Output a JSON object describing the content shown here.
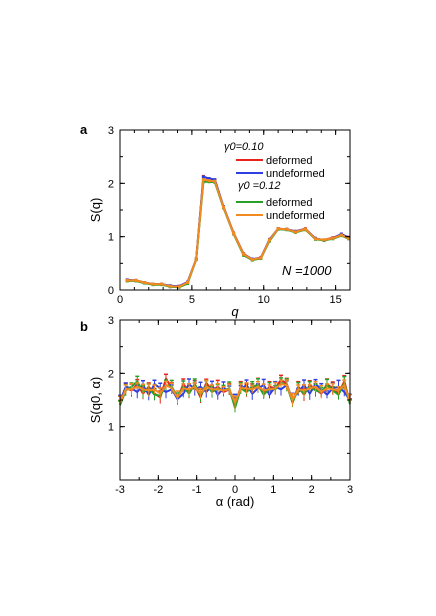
{
  "chart_data": [
    {
      "panel_label": "a",
      "type": "line",
      "xlabel": "q",
      "ylabel": "S(q)",
      "xlim": [
        0,
        16
      ],
      "ylim": [
        0,
        3
      ],
      "xticks": [
        0,
        5,
        10,
        15
      ],
      "yticks": [
        0,
        1,
        2,
        3
      ],
      "annotation": "N =1000",
      "legend": [
        {
          "heading": "γ0=0.10",
          "entries": [
            "deformed",
            "undeformed"
          ]
        },
        {
          "heading": "γ0 =0.12",
          "entries": [
            "deformed",
            "undeformed"
          ]
        }
      ],
      "x": [
        0.5,
        1.1,
        1.7,
        2.3,
        2.9,
        3.5,
        4.1,
        4.7,
        5.3,
        5.8,
        6.2,
        6.6,
        7.2,
        7.9,
        8.6,
        9.2,
        9.8,
        10.4,
        11.0,
        11.6,
        12.2,
        12.9,
        13.6,
        14.2,
        14.8,
        15.4,
        15.9
      ],
      "series": [
        {
          "name": "deformed",
          "color": "#e8231c",
          "values": [
            0.18,
            0.18,
            0.14,
            0.11,
            0.11,
            0.07,
            0.07,
            0.15,
            0.58,
            2.13,
            2.08,
            2.06,
            1.56,
            1.07,
            0.68,
            0.57,
            0.61,
            0.94,
            1.15,
            1.14,
            1.1,
            1.15,
            0.96,
            0.94,
            0.98,
            1.04,
            0.99
          ]
        },
        {
          "name": "undeformed",
          "color": "#2f3ee0",
          "values": [
            0.19,
            0.18,
            0.14,
            0.11,
            0.11,
            0.08,
            0.07,
            0.15,
            0.58,
            2.12,
            2.09,
            2.07,
            1.56,
            1.06,
            0.67,
            0.58,
            0.6,
            0.95,
            1.15,
            1.14,
            1.1,
            1.14,
            0.97,
            0.93,
            0.97,
            1.05,
            0.98
          ]
        },
        {
          "name": "deformed",
          "color": "#28a028",
          "values": [
            0.17,
            0.17,
            0.13,
            0.1,
            0.1,
            0.06,
            0.05,
            0.12,
            0.57,
            2.03,
            2.03,
            2.02,
            1.54,
            1.05,
            0.65,
            0.56,
            0.59,
            0.92,
            1.14,
            1.13,
            1.08,
            1.13,
            0.95,
            0.93,
            0.96,
            1.02,
            0.96
          ]
        },
        {
          "name": "undeformed",
          "color": "#f28a22",
          "values": [
            0.18,
            0.18,
            0.14,
            0.11,
            0.11,
            0.07,
            0.06,
            0.14,
            0.58,
            2.07,
            2.05,
            2.04,
            1.55,
            1.06,
            0.67,
            0.57,
            0.6,
            0.94,
            1.15,
            1.14,
            1.09,
            1.14,
            0.96,
            0.94,
            0.97,
            1.03,
            0.97
          ]
        }
      ]
    },
    {
      "panel_label": "b",
      "type": "line",
      "xlabel": "α (rad)",
      "ylabel": "S(q0, α)",
      "xlim": [
        -3,
        3
      ],
      "ylim": [
        0,
        3
      ],
      "xticks": [
        -3,
        -2,
        -1,
        0,
        1,
        2,
        3
      ],
      "yticks": [
        1,
        2,
        3
      ],
      "error_bars": true,
      "x": [
        -3.0,
        -2.85,
        -2.7,
        -2.55,
        -2.4,
        -2.25,
        -2.1,
        -1.95,
        -1.8,
        -1.65,
        -1.5,
        -1.35,
        -1.2,
        -1.05,
        -0.9,
        -0.75,
        -0.6,
        -0.45,
        -0.3,
        -0.15,
        0.0,
        0.15,
        0.3,
        0.45,
        0.6,
        0.75,
        0.9,
        1.05,
        1.2,
        1.35,
        1.5,
        1.65,
        1.8,
        1.95,
        2.1,
        2.25,
        2.4,
        2.55,
        2.7,
        2.85,
        3.0
      ],
      "series": [
        {
          "name": "deformed",
          "color": "#e8231c",
          "values": [
            1.42,
            1.72,
            1.68,
            1.8,
            1.62,
            1.75,
            1.62,
            1.55,
            1.9,
            1.72,
            1.52,
            1.8,
            1.65,
            1.78,
            1.55,
            1.82,
            1.68,
            1.75,
            1.65,
            1.7,
            1.4,
            1.75,
            1.68,
            1.72,
            1.8,
            1.62,
            1.75,
            1.72,
            1.88,
            1.8,
            1.48,
            1.75,
            1.6,
            1.78,
            1.7,
            1.62,
            1.8,
            1.72,
            1.62,
            1.85,
            1.45
          ]
        },
        {
          "name": "undeformed",
          "color": "#2f3ee0",
          "values": [
            1.48,
            1.75,
            1.72,
            1.65,
            1.78,
            1.6,
            1.8,
            1.72,
            1.65,
            1.7,
            1.52,
            1.62,
            1.8,
            1.7,
            1.75,
            1.65,
            1.78,
            1.6,
            1.72,
            1.68,
            1.5,
            1.7,
            1.78,
            1.62,
            1.72,
            1.78,
            1.6,
            1.75,
            1.7,
            1.78,
            1.52,
            1.65,
            1.78,
            1.62,
            1.8,
            1.7,
            1.6,
            1.72,
            1.75,
            1.65,
            1.5
          ]
        },
        {
          "name": "deformed",
          "color": "#28a028",
          "values": [
            1.4,
            1.68,
            1.75,
            1.85,
            1.65,
            1.72,
            1.6,
            1.58,
            1.78,
            1.75,
            1.55,
            1.75,
            1.62,
            1.8,
            1.58,
            1.78,
            1.65,
            1.72,
            1.68,
            1.72,
            1.35,
            1.72,
            1.65,
            1.75,
            1.78,
            1.6,
            1.72,
            1.7,
            1.82,
            1.78,
            1.45,
            1.72,
            1.62,
            1.75,
            1.68,
            1.65,
            1.78,
            1.68,
            1.6,
            1.82,
            1.42
          ]
        },
        {
          "name": "undeformed",
          "color": "#f28a22",
          "values": [
            1.45,
            1.7,
            1.7,
            1.75,
            1.7,
            1.68,
            1.7,
            1.62,
            1.78,
            1.72,
            1.55,
            1.72,
            1.7,
            1.75,
            1.62,
            1.75,
            1.7,
            1.7,
            1.68,
            1.7,
            1.45,
            1.72,
            1.72,
            1.7,
            1.75,
            1.68,
            1.7,
            1.72,
            1.8,
            1.78,
            1.5,
            1.7,
            1.68,
            1.72,
            1.75,
            1.65,
            1.72,
            1.7,
            1.68,
            1.78,
            1.48
          ]
        }
      ]
    }
  ]
}
